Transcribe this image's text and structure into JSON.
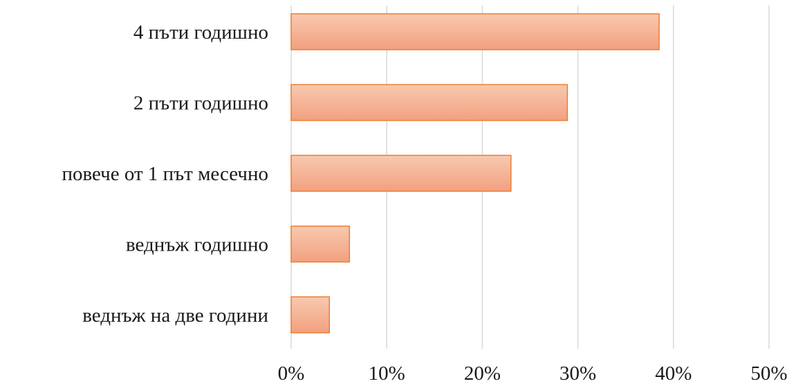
{
  "chart_data": {
    "type": "bar",
    "orientation": "horizontal",
    "categories": [
      "4 пъти годишно",
      "2 пъти годишно",
      "повече от 1 път месечно",
      "веднъж годишно",
      "веднъж на две години"
    ],
    "values": [
      38.5,
      28.9,
      23.0,
      6.1,
      4.0
    ],
    "value_unit": "%",
    "xlim": [
      0,
      50
    ],
    "xticks": [
      0,
      10,
      20,
      30,
      40,
      50
    ],
    "xtick_labels": [
      "0%",
      "10%",
      "20%",
      "30%",
      "40%",
      "50%"
    ],
    "title": "",
    "xlabel": "",
    "ylabel": "",
    "grid": "vertical",
    "legend": "none",
    "colors": {
      "bar_fill_light": "#f8c9b0",
      "bar_fill_dark": "#f2a07f",
      "bar_stroke": "#ed7d31",
      "gridline": "#d9d9d9",
      "text": "#1a1a1a"
    }
  }
}
